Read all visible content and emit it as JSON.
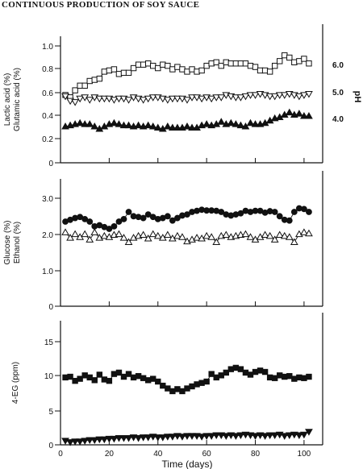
{
  "page_title": "CONTINUOUS PRODUCTION OF SOY SAUCE",
  "chart_data": [
    {
      "type": "line",
      "panel": "top",
      "ylabel": [
        "Lactic acid (%)",
        "Glutamic acid (%)"
      ],
      "ylim": [
        0,
        1.15
      ],
      "yticks": [
        "0",
        "0.2",
        "0.4",
        "0.6",
        "0.8",
        "1.0"
      ],
      "y2label": "pH",
      "y2ticks": [
        "4.0",
        "5.0",
        "6.0"
      ],
      "xlim": [
        0,
        105
      ],
      "series": [
        {
          "marker": "square-open",
          "x": [
            2,
            4,
            6,
            8,
            10,
            12,
            14,
            16,
            18,
            20,
            22,
            24,
            26,
            28,
            30,
            32,
            34,
            36,
            38,
            40,
            42,
            44,
            46,
            48,
            50,
            52,
            54,
            56,
            58,
            60,
            62,
            64,
            66,
            68,
            70,
            72,
            74,
            76,
            78,
            80,
            82,
            84,
            86,
            88,
            90,
            92,
            94,
            96,
            98,
            100,
            102
          ],
          "y": [
            0.58,
            0.56,
            0.62,
            0.66,
            0.66,
            0.7,
            0.71,
            0.72,
            0.78,
            0.79,
            0.8,
            0.76,
            0.77,
            0.77,
            0.81,
            0.84,
            0.84,
            0.85,
            0.83,
            0.81,
            0.84,
            0.83,
            0.8,
            0.82,
            0.8,
            0.78,
            0.8,
            0.78,
            0.79,
            0.83,
            0.85,
            0.86,
            0.83,
            0.86,
            0.85,
            0.85,
            0.85,
            0.85,
            0.83,
            0.82,
            0.79,
            0.79,
            0.78,
            0.83,
            0.87,
            0.92,
            0.9,
            0.86,
            0.87,
            0.89,
            0.85
          ]
        },
        {
          "marker": "triangle-down-open",
          "x": [
            2,
            4,
            6,
            8,
            10,
            12,
            14,
            16,
            18,
            20,
            22,
            24,
            26,
            28,
            30,
            32,
            34,
            36,
            38,
            40,
            42,
            44,
            46,
            48,
            50,
            52,
            54,
            56,
            58,
            60,
            62,
            64,
            66,
            68,
            70,
            72,
            74,
            76,
            78,
            80,
            82,
            84,
            86,
            88,
            90,
            92,
            94,
            96,
            98,
            100,
            102
          ],
          "y": [
            0.57,
            0.53,
            0.52,
            0.55,
            0.56,
            0.54,
            0.56,
            0.55,
            0.55,
            0.55,
            0.54,
            0.55,
            0.55,
            0.54,
            0.56,
            0.55,
            0.54,
            0.55,
            0.56,
            0.56,
            0.55,
            0.54,
            0.55,
            0.55,
            0.55,
            0.54,
            0.56,
            0.56,
            0.55,
            0.56,
            0.55,
            0.56,
            0.56,
            0.58,
            0.57,
            0.56,
            0.56,
            0.57,
            0.58,
            0.58,
            0.59,
            0.58,
            0.57,
            0.57,
            0.58,
            0.58,
            0.59,
            0.58,
            0.57,
            0.58,
            0.59
          ]
        },
        {
          "marker": "triangle-up-filled",
          "x": [
            2,
            4,
            6,
            8,
            10,
            12,
            14,
            16,
            18,
            20,
            22,
            24,
            26,
            28,
            30,
            32,
            34,
            36,
            38,
            40,
            42,
            44,
            46,
            48,
            50,
            52,
            54,
            56,
            58,
            60,
            62,
            64,
            66,
            68,
            70,
            72,
            74,
            76,
            78,
            80,
            82,
            84,
            86,
            88,
            90,
            92,
            94,
            96,
            98,
            100,
            102
          ],
          "y": [
            0.31,
            0.32,
            0.33,
            0.34,
            0.33,
            0.33,
            0.31,
            0.29,
            0.31,
            0.33,
            0.34,
            0.33,
            0.32,
            0.32,
            0.31,
            0.32,
            0.31,
            0.32,
            0.31,
            0.3,
            0.29,
            0.31,
            0.3,
            0.3,
            0.3,
            0.31,
            0.3,
            0.3,
            0.32,
            0.33,
            0.32,
            0.33,
            0.35,
            0.33,
            0.34,
            0.33,
            0.32,
            0.31,
            0.34,
            0.33,
            0.33,
            0.34,
            0.36,
            0.38,
            0.39,
            0.41,
            0.43,
            0.41,
            0.42,
            0.4,
            0.4
          ]
        }
      ]
    },
    {
      "type": "line",
      "panel": "middle",
      "ylabel": [
        "Glucose (%)",
        "Ethanol (%)"
      ],
      "ylim": [
        0,
        3.3
      ],
      "yticks": [
        "0",
        "1.0",
        "2.0",
        "3.0"
      ],
      "xlim": [
        0,
        105
      ],
      "series": [
        {
          "marker": "circle-filled",
          "x": [
            2,
            4,
            6,
            8,
            10,
            12,
            14,
            16,
            18,
            20,
            22,
            24,
            26,
            28,
            30,
            32,
            34,
            36,
            38,
            40,
            42,
            44,
            46,
            48,
            50,
            52,
            54,
            56,
            58,
            60,
            62,
            64,
            66,
            68,
            70,
            72,
            74,
            76,
            78,
            80,
            82,
            84,
            86,
            88,
            90,
            92,
            94,
            96,
            98,
            100,
            102
          ],
          "y": [
            2.35,
            2.4,
            2.45,
            2.48,
            2.42,
            2.35,
            2.22,
            2.25,
            2.2,
            2.15,
            2.22,
            2.35,
            2.42,
            2.62,
            2.5,
            2.48,
            2.45,
            2.55,
            2.48,
            2.42,
            2.45,
            2.5,
            2.38,
            2.45,
            2.52,
            2.55,
            2.62,
            2.65,
            2.68,
            2.66,
            2.66,
            2.65,
            2.62,
            2.55,
            2.52,
            2.55,
            2.58,
            2.65,
            2.62,
            2.65,
            2.65,
            2.6,
            2.64,
            2.62,
            2.5,
            2.4,
            2.38,
            2.62,
            2.72,
            2.7,
            2.62
          ]
        },
        {
          "marker": "triangle-up-open",
          "x": [
            2,
            4,
            6,
            8,
            10,
            12,
            14,
            16,
            18,
            20,
            22,
            24,
            26,
            28,
            30,
            32,
            34,
            36,
            38,
            40,
            42,
            44,
            46,
            48,
            50,
            52,
            54,
            56,
            58,
            60,
            62,
            64,
            66,
            68,
            70,
            72,
            74,
            76,
            78,
            80,
            82,
            84,
            86,
            88,
            90,
            92,
            94,
            96,
            98,
            100,
            102
          ],
          "y": [
            2.05,
            1.9,
            2.0,
            1.92,
            2.0,
            1.85,
            2.05,
            1.9,
            1.95,
            1.92,
            1.98,
            2.0,
            1.9,
            1.78,
            1.9,
            1.95,
            1.98,
            1.88,
            2.0,
            1.95,
            1.9,
            1.98,
            1.88,
            1.95,
            1.92,
            1.8,
            1.85,
            1.9,
            1.88,
            1.95,
            1.92,
            1.78,
            1.95,
            1.98,
            1.92,
            1.95,
            1.98,
            2.0,
            1.92,
            1.85,
            1.92,
            1.98,
            1.95,
            1.85,
            1.98,
            1.95,
            1.92,
            1.78,
            2.0,
            2.05,
            2.02
          ]
        }
      ]
    },
    {
      "type": "line",
      "panel": "bottom",
      "ylabel": [
        "4-EG (ppm)"
      ],
      "ylim": [
        0,
        17
      ],
      "yticks": [
        "0",
        "5",
        "10",
        "15"
      ],
      "xlim": [
        0,
        105
      ],
      "xlabel": "Time (days)",
      "xticks": [
        "0",
        "20",
        "40",
        "60",
        "80",
        "100"
      ],
      "series": [
        {
          "marker": "square-filled",
          "x": [
            2,
            4,
            6,
            8,
            10,
            12,
            14,
            16,
            18,
            20,
            22,
            24,
            26,
            28,
            30,
            32,
            34,
            36,
            38,
            40,
            42,
            44,
            46,
            48,
            50,
            52,
            54,
            56,
            58,
            60,
            62,
            64,
            66,
            68,
            70,
            72,
            74,
            76,
            78,
            80,
            82,
            84,
            86,
            88,
            90,
            92,
            94,
            96,
            98,
            100,
            102
          ],
          "y": [
            9.8,
            9.9,
            9.3,
            9.6,
            10.1,
            9.8,
            9.4,
            10.2,
            9.5,
            9.3,
            10.3,
            10.5,
            9.9,
            10.3,
            9.8,
            10.0,
            9.7,
            9.4,
            9.6,
            9.2,
            8.6,
            8.2,
            7.8,
            8.1,
            7.8,
            8.2,
            8.5,
            8.8,
            9.0,
            9.2,
            10.3,
            9.8,
            10.1,
            10.5,
            11.0,
            11.2,
            11.0,
            10.5,
            10.2,
            10.6,
            10.8,
            10.6,
            9.8,
            9.7,
            10.1,
            9.9,
            10.0,
            9.6,
            9.8,
            9.7,
            9.9
          ]
        },
        {
          "marker": "triangle-down-filled",
          "x": [
            2,
            4,
            6,
            8,
            10,
            12,
            14,
            16,
            18,
            20,
            22,
            24,
            26,
            28,
            30,
            32,
            34,
            36,
            38,
            40,
            42,
            44,
            46,
            48,
            50,
            52,
            54,
            56,
            58,
            60,
            62,
            64,
            66,
            68,
            70,
            72,
            74,
            76,
            78,
            80,
            82,
            84,
            86,
            88,
            90,
            92,
            94,
            96,
            98,
            100,
            102
          ],
          "y": [
            0.6,
            0.4,
            0.5,
            0.5,
            0.6,
            0.7,
            0.7,
            0.8,
            0.8,
            0.9,
            0.9,
            1.0,
            1.0,
            1.0,
            1.1,
            1.0,
            1.1,
            1.1,
            1.2,
            1.1,
            1.1,
            1.2,
            1.2,
            1.3,
            1.2,
            1.3,
            1.3,
            1.3,
            1.2,
            1.3,
            1.3,
            1.4,
            1.4,
            1.3,
            1.4,
            1.3,
            1.4,
            1.5,
            1.4,
            1.3,
            1.4,
            1.3,
            1.4,
            1.4,
            1.5,
            1.3,
            1.4,
            1.5,
            1.4,
            1.5,
            1.9
          ]
        }
      ]
    }
  ]
}
